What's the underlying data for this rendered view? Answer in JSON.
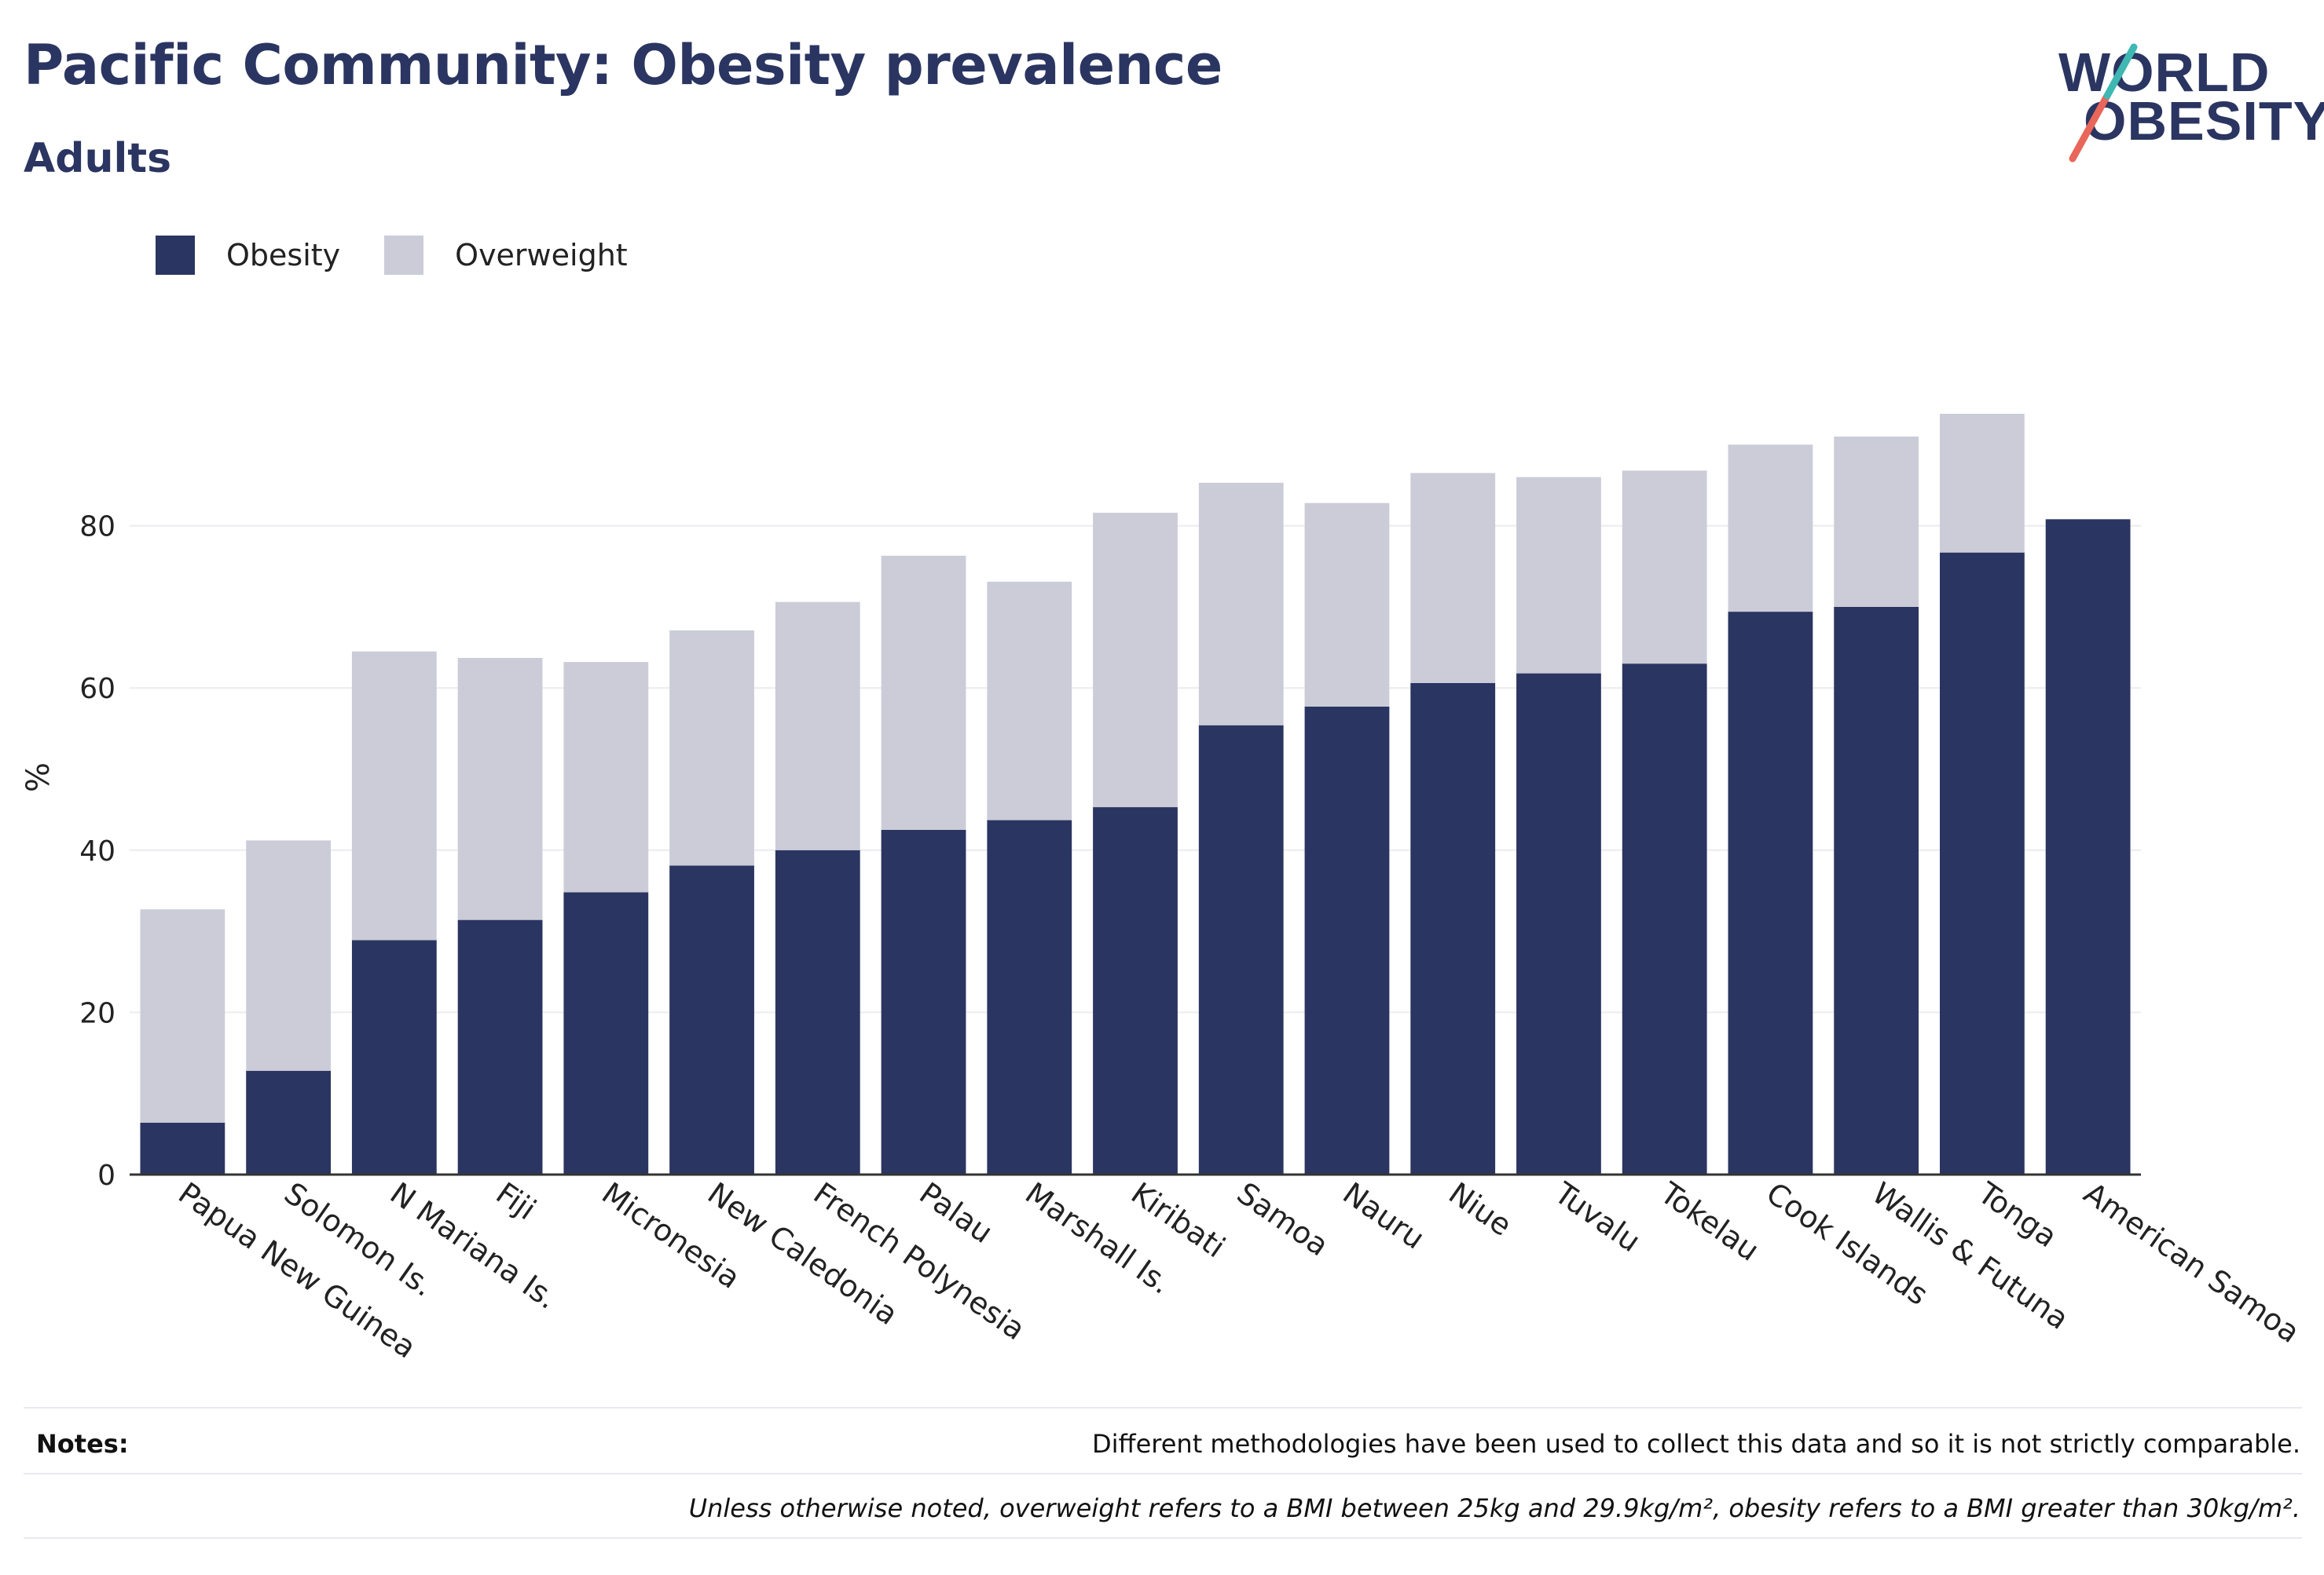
{
  "header": {
    "title": "Pacific Community: Obesity prevalence",
    "subtitle": "Adults"
  },
  "logo": {
    "line1": "WORLD",
    "line2": "OBESITY"
  },
  "legend": {
    "items": [
      {
        "label": "Obesity",
        "color": "#2b3561"
      },
      {
        "label": "Overweight",
        "color": "#cbccd8"
      }
    ]
  },
  "notes": {
    "label": "Notes:",
    "line1": "Different methodologies have been used to collect this data and so it is not strictly comparable.",
    "line2": "Unless otherwise noted, overweight refers to a BMI between 25kg and 29.9kg/m², obesity refers to a BMI greater than 30kg/m²."
  },
  "chart_data": {
    "type": "bar",
    "stacked": true,
    "title": "Pacific Community: Obesity prevalence",
    "subtitle": "Adults",
    "xlabel": "",
    "ylabel": "%",
    "ylim": [
      0,
      95
    ],
    "yticks": [
      0,
      20,
      40,
      60,
      80
    ],
    "grid": true,
    "legend_position": "top-left",
    "colors": {
      "obesity": "#2b3561",
      "overweight": "#cbccd8"
    },
    "categories": [
      "Papua New Guinea",
      "Solomon Is.",
      "N Mariana Is.",
      "Fiji",
      "Micronesia",
      "New Caledonia",
      "French Polynesia",
      "Palau",
      "Marshall Is.",
      "Kiribati",
      "Samoa",
      "Nauru",
      "Niue",
      "Tuvalu",
      "Tokelau",
      "Cook Islands",
      "Wallis & Futuna",
      "Tonga",
      "American Samoa"
    ],
    "series": [
      {
        "name": "Obesity",
        "values": [
          6.4,
          12.8,
          28.9,
          31.4,
          34.8,
          38.1,
          40.0,
          42.5,
          43.7,
          45.3,
          55.4,
          57.7,
          60.6,
          61.8,
          63.0,
          69.4,
          70.0,
          76.7,
          80.8
        ]
      },
      {
        "name": "Overweight",
        "values": [
          26.3,
          28.4,
          35.6,
          32.3,
          28.4,
          29.0,
          30.6,
          33.8,
          29.4,
          36.3,
          29.9,
          25.1,
          25.9,
          24.2,
          23.8,
          20.6,
          21.0,
          17.1,
          0.0
        ]
      }
    ]
  }
}
